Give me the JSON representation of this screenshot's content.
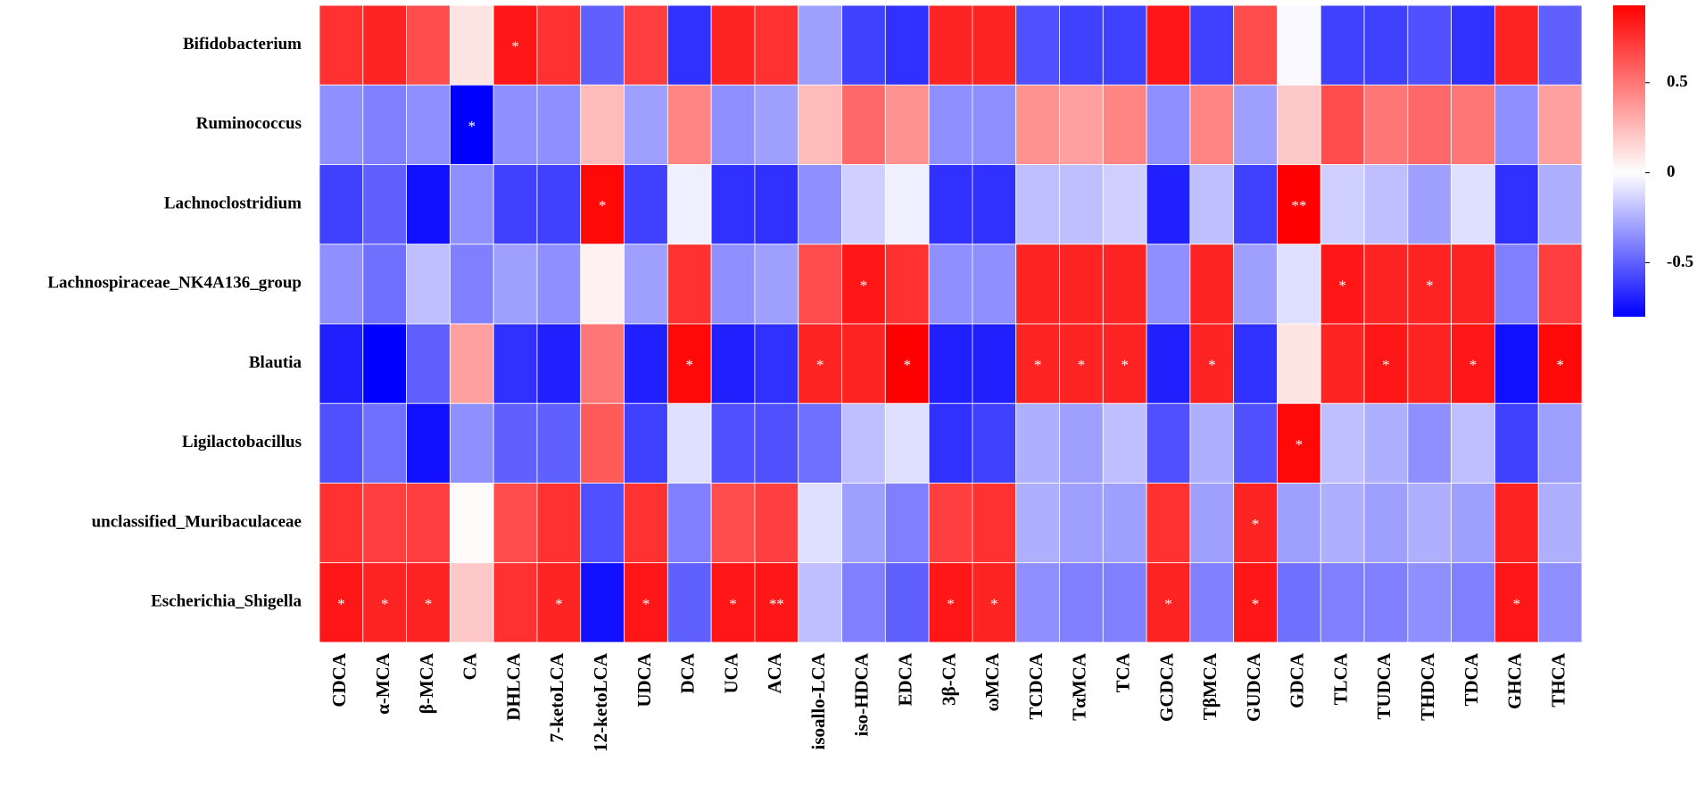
{
  "chart_data": {
    "type": "heatmap",
    "rows": [
      "Bifidobacterium",
      "Ruminococcus",
      "Lachnoclostridium",
      "Lachnospiraceae_NK4A136_group",
      "Blautia",
      "Ligilactobacillus",
      "unclassified_Muribaculaceae",
      "Escherichia_Shigella"
    ],
    "columns": [
      "CDCA",
      "α-MCA",
      "β-MCA",
      "CA",
      "DHLCA",
      "7-ketoLCA",
      "12-ketoLCA",
      "UDCA",
      "DCA",
      "UCA",
      "ACA",
      "isoallo-LCA",
      "iso-HDCA",
      "EDCA",
      "3β-CA",
      "ωMCA",
      "TCDCA",
      "TαMCA",
      "TCA",
      "GCDCA",
      "TβMCA",
      "GUDCA",
      "GDCA",
      "TLCA",
      "TUDCA",
      "THDCA",
      "TDCA",
      "GHCA",
      "THCA"
    ],
    "values": [
      [
        0.75,
        0.8,
        0.65,
        0.1,
        0.85,
        0.75,
        -0.5,
        0.7,
        -0.65,
        0.8,
        0.75,
        -0.3,
        -0.6,
        -0.65,
        0.8,
        0.8,
        -0.55,
        -0.6,
        -0.6,
        0.85,
        -0.6,
        0.65,
        -0.02,
        -0.6,
        -0.6,
        -0.55,
        -0.65,
        0.8,
        -0.5
      ],
      [
        -0.35,
        -0.4,
        -0.35,
        -0.8,
        -0.35,
        -0.35,
        0.25,
        -0.3,
        0.45,
        -0.35,
        -0.3,
        0.25,
        0.55,
        0.4,
        -0.35,
        -0.35,
        0.4,
        0.35,
        0.45,
        -0.35,
        0.45,
        -0.3,
        0.2,
        0.65,
        0.5,
        0.55,
        0.5,
        -0.35,
        0.35
      ],
      [
        -0.6,
        -0.5,
        -0.75,
        -0.35,
        -0.6,
        -0.6,
        0.9,
        -0.6,
        -0.05,
        -0.65,
        -0.65,
        -0.35,
        -0.15,
        -0.05,
        -0.65,
        -0.65,
        -0.2,
        -0.2,
        -0.15,
        -0.7,
        -0.2,
        -0.6,
        0.93,
        -0.15,
        -0.2,
        -0.3,
        -0.1,
        -0.65,
        -0.25
      ],
      [
        -0.35,
        -0.45,
        -0.2,
        -0.4,
        -0.3,
        -0.35,
        0.05,
        -0.3,
        0.75,
        -0.35,
        -0.3,
        0.65,
        0.85,
        0.75,
        -0.35,
        -0.35,
        0.8,
        0.8,
        0.8,
        -0.35,
        0.8,
        -0.3,
        -0.1,
        0.85,
        0.8,
        0.8,
        0.8,
        -0.4,
        0.7
      ],
      [
        -0.7,
        -0.8,
        -0.5,
        0.35,
        -0.65,
        -0.7,
        0.5,
        -0.7,
        0.9,
        -0.7,
        -0.65,
        0.8,
        0.8,
        0.93,
        -0.7,
        -0.7,
        0.8,
        0.8,
        0.8,
        -0.7,
        0.8,
        -0.65,
        0.1,
        0.8,
        0.85,
        0.8,
        0.85,
        -0.75,
        0.9
      ],
      [
        -0.55,
        -0.45,
        -0.75,
        -0.35,
        -0.5,
        -0.5,
        0.6,
        -0.6,
        -0.1,
        -0.55,
        -0.55,
        -0.45,
        -0.2,
        -0.1,
        -0.65,
        -0.6,
        -0.25,
        -0.3,
        -0.2,
        -0.55,
        -0.25,
        -0.55,
        0.9,
        -0.2,
        -0.25,
        -0.35,
        -0.2,
        -0.6,
        -0.3
      ],
      [
        0.75,
        0.7,
        0.7,
        0.02,
        0.65,
        0.75,
        -0.55,
        0.75,
        -0.4,
        0.65,
        0.7,
        -0.1,
        -0.3,
        -0.4,
        0.7,
        0.75,
        -0.25,
        -0.3,
        -0.3,
        0.75,
        -0.3,
        0.8,
        -0.3,
        -0.25,
        -0.3,
        -0.25,
        -0.3,
        0.8,
        -0.25
      ],
      [
        0.85,
        0.8,
        0.8,
        0.2,
        0.75,
        0.8,
        -0.75,
        0.85,
        -0.5,
        0.85,
        0.85,
        -0.2,
        -0.4,
        -0.5,
        0.85,
        0.8,
        -0.35,
        -0.4,
        -0.4,
        0.8,
        -0.4,
        0.85,
        -0.45,
        -0.4,
        -0.4,
        -0.35,
        -0.4,
        0.85,
        -0.35
      ]
    ],
    "annotations": [
      [
        null,
        null,
        null,
        null,
        "*",
        null,
        null,
        null,
        null,
        null,
        null,
        null,
        null,
        null,
        null,
        null,
        null,
        null,
        null,
        null,
        null,
        null,
        null,
        null,
        null,
        null,
        null,
        null,
        null
      ],
      [
        null,
        null,
        null,
        "*",
        null,
        null,
        null,
        null,
        null,
        null,
        null,
        null,
        null,
        null,
        null,
        null,
        null,
        null,
        null,
        null,
        null,
        null,
        null,
        null,
        null,
        null,
        null,
        null,
        null
      ],
      [
        null,
        null,
        null,
        null,
        null,
        null,
        "*",
        null,
        null,
        null,
        null,
        null,
        null,
        null,
        null,
        null,
        null,
        null,
        null,
        null,
        null,
        null,
        "**",
        null,
        null,
        null,
        null,
        null,
        null
      ],
      [
        null,
        null,
        null,
        null,
        null,
        null,
        null,
        null,
        null,
        null,
        null,
        null,
        "*",
        null,
        null,
        null,
        null,
        null,
        null,
        null,
        null,
        null,
        null,
        "*",
        null,
        "*",
        null,
        null,
        null
      ],
      [
        null,
        null,
        null,
        null,
        null,
        null,
        null,
        null,
        "*",
        null,
        null,
        "*",
        null,
        "*",
        null,
        null,
        "*",
        "*",
        "*",
        null,
        "*",
        null,
        null,
        null,
        "*",
        null,
        "*",
        null,
        "*"
      ],
      [
        null,
        null,
        null,
        null,
        null,
        null,
        null,
        null,
        null,
        null,
        null,
        null,
        null,
        null,
        null,
        null,
        null,
        null,
        null,
        null,
        null,
        null,
        "*",
        null,
        null,
        null,
        null,
        null,
        null
      ],
      [
        null,
        null,
        null,
        null,
        null,
        null,
        null,
        null,
        null,
        null,
        null,
        null,
        null,
        null,
        null,
        null,
        null,
        null,
        null,
        null,
        null,
        "*",
        null,
        null,
        null,
        null,
        null,
        null,
        null
      ],
      [
        "*",
        "*",
        "*",
        null,
        null,
        "*",
        null,
        "*",
        null,
        "*",
        "**",
        null,
        null,
        null,
        "*",
        "*",
        null,
        null,
        null,
        "*",
        null,
        "*",
        null,
        null,
        null,
        null,
        null,
        "*",
        null
      ]
    ],
    "clim": [
      -0.8,
      0.93
    ],
    "cticks": [
      -0.5,
      0,
      0.5
    ],
    "colors": [
      "#0000ff",
      "#ffffff",
      "#ff0000"
    ]
  }
}
